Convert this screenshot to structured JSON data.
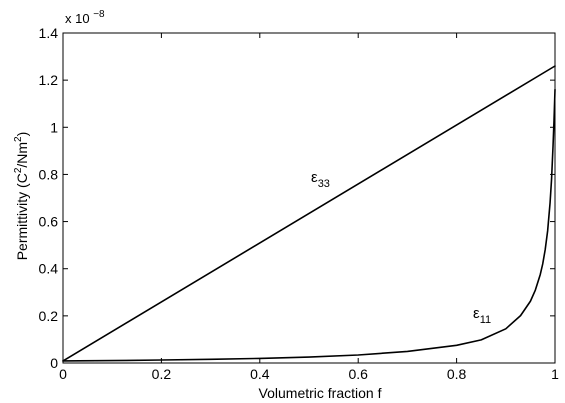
{
  "chart_data": {
    "type": "line",
    "xlabel": "Volumetric fraction f",
    "ylabel": "Permittivity (C²/Nm²)",
    "ylabel_parts": {
      "before": "Permittivity (C",
      "sup1": "2",
      "middle": "/Nm",
      "sup2": "2",
      "after": ")"
    },
    "y_multiplier": {
      "base": "x 10",
      "exponent": "−8"
    },
    "xlim": [
      0,
      1
    ],
    "ylim": [
      0,
      1.4
    ],
    "y_scale_factor": 1e-08,
    "x_ticks": [
      {
        "value": 0,
        "label": "0"
      },
      {
        "value": 0.2,
        "label": "0.2"
      },
      {
        "value": 0.4,
        "label": "0.4"
      },
      {
        "value": 0.6,
        "label": "0.6"
      },
      {
        "value": 0.8,
        "label": "0.8"
      },
      {
        "value": 1,
        "label": "1"
      }
    ],
    "y_ticks": [
      {
        "value": 0,
        "label": "0"
      },
      {
        "value": 0.2,
        "label": "0.2"
      },
      {
        "value": 0.4,
        "label": "0.4"
      },
      {
        "value": 0.6,
        "label": "0.6"
      },
      {
        "value": 0.8,
        "label": "0.8"
      },
      {
        "value": 1,
        "label": "1"
      },
      {
        "value": 1.2,
        "label": "1.2"
      },
      {
        "value": 1.4,
        "label": "1.4"
      }
    ],
    "grid": false,
    "line_color": "#000000",
    "series": [
      {
        "label_main": "ε",
        "label_sub": "33",
        "x": [
          0,
          1
        ],
        "y": [
          0.0088,
          1.26
        ]
      },
      {
        "label_main": "ε",
        "label_sub": "11",
        "x": [
          0,
          0.1,
          0.2,
          0.3,
          0.4,
          0.5,
          0.6,
          0.7,
          0.8,
          0.85,
          0.9,
          0.93,
          0.95,
          0.96,
          0.97,
          0.975,
          0.98,
          0.985,
          0.99,
          0.993,
          0.996,
          0.998,
          1
        ],
        "y": [
          0.0088,
          0.0103,
          0.0127,
          0.0155,
          0.0195,
          0.025,
          0.034,
          0.049,
          0.075,
          0.098,
          0.145,
          0.201,
          0.262,
          0.309,
          0.375,
          0.42,
          0.48,
          0.56,
          0.68,
          0.78,
          0.92,
          1.03,
          1.16
        ]
      }
    ]
  }
}
